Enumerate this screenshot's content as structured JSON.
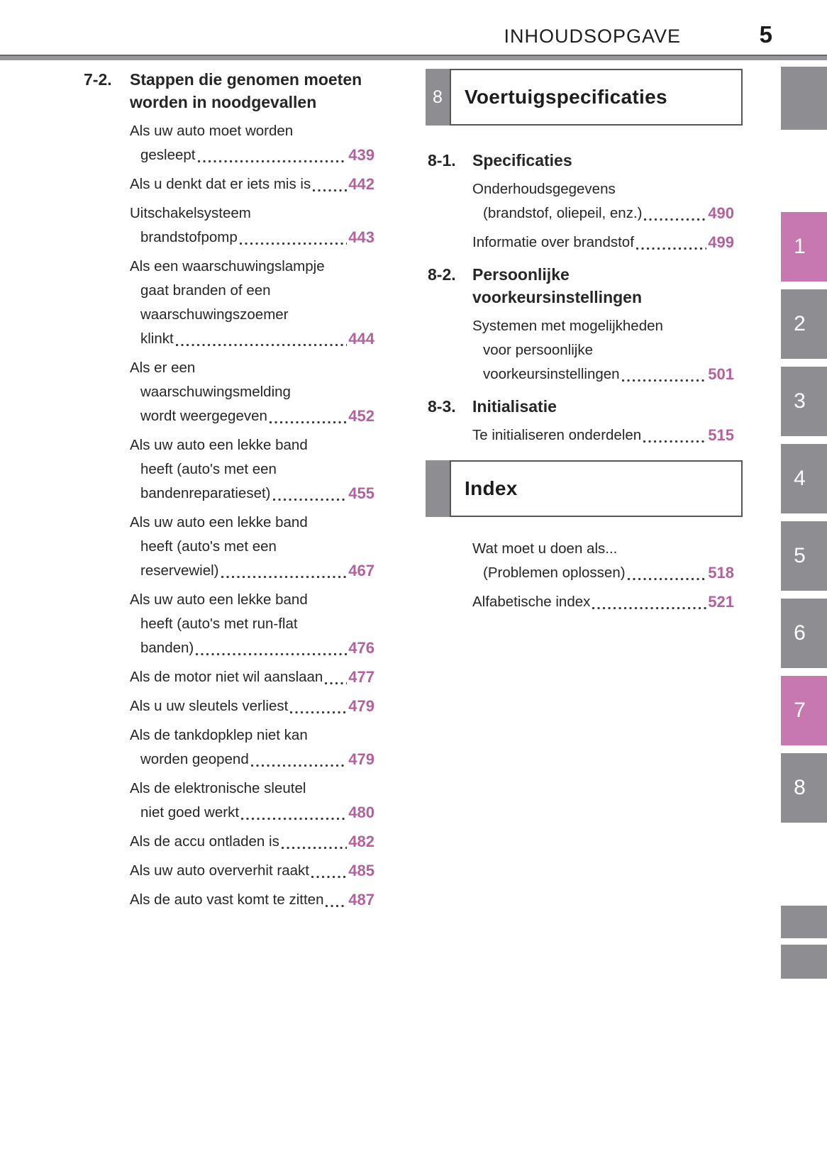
{
  "header": {
    "title": "INHOUDSOPGAVE",
    "page_number": "5"
  },
  "colors": {
    "page_number_pink": "#b3609e",
    "tab_pink": "#c778b1",
    "tab_gray": "#8e8e92",
    "text": "#262626",
    "box_border": "#55555a",
    "rule_gray": "#96969a"
  },
  "left_column": {
    "section_label": "7-2.",
    "section_title_lines": [
      "Stappen die genomen moeten",
      "worden in noodgevallen"
    ],
    "entries": [
      {
        "pre_lines": [
          "Als uw auto moet worden"
        ],
        "last_line": "gesleept",
        "page": "439"
      },
      {
        "pre_lines": [],
        "last_line": "Als u denkt dat er iets mis is",
        "page": "442"
      },
      {
        "pre_lines": [
          "Uitschakelsysteem"
        ],
        "last_line": "brandstofpomp",
        "page": "443"
      },
      {
        "pre_lines": [
          "Als een waarschuwingslampje",
          "gaat branden of een",
          "waarschuwingszoemer"
        ],
        "last_line": "klinkt",
        "page": "444"
      },
      {
        "pre_lines": [
          "Als er een",
          "waarschuwingsmelding"
        ],
        "last_line": "wordt weergegeven",
        "page": "452"
      },
      {
        "pre_lines": [
          "Als uw auto een lekke band",
          "heeft (auto's met een"
        ],
        "last_line": "bandenreparatieset)",
        "page": "455"
      },
      {
        "pre_lines": [
          "Als uw auto een lekke band",
          "heeft (auto's met een"
        ],
        "last_line": "reservewiel)",
        "page": "467"
      },
      {
        "pre_lines": [
          "Als uw auto een lekke band",
          "heeft (auto's met run-flat"
        ],
        "last_line": "banden)",
        "page": "476"
      },
      {
        "pre_lines": [],
        "last_line": "Als de motor niet wil aanslaan",
        "page": "477"
      },
      {
        "pre_lines": [],
        "last_line": "Als u uw sleutels verliest",
        "page": "479"
      },
      {
        "pre_lines": [
          "Als de tankdopklep niet kan"
        ],
        "last_line": "worden geopend",
        "page": "479"
      },
      {
        "pre_lines": [
          "Als de elektronische sleutel"
        ],
        "last_line": "niet goed werkt",
        "page": "480"
      },
      {
        "pre_lines": [],
        "last_line": "Als de accu ontladen is",
        "page": "482"
      },
      {
        "pre_lines": [],
        "last_line": "Als uw auto oververhit raakt",
        "page": "485"
      },
      {
        "pre_lines": [],
        "last_line": "Als de auto vast komt te zitten",
        "page": "487"
      }
    ]
  },
  "right_column": {
    "chapter_box": {
      "number": "8",
      "title": "Voertuigspecificaties"
    },
    "sections": [
      {
        "label": "8-1.",
        "title_lines": [
          "Specificaties"
        ],
        "entries": [
          {
            "pre_lines": [
              "Onderhoudsgegevens"
            ],
            "last_line": "(brandstof, oliepeil, enz.)",
            "page": "490"
          },
          {
            "pre_lines": [],
            "last_line": "Informatie over brandstof",
            "page": "499"
          }
        ]
      },
      {
        "label": "8-2.",
        "title_lines": [
          "Persoonlijke",
          "voorkeursinstellingen"
        ],
        "entries": [
          {
            "pre_lines": [
              "Systemen met mogelijkheden",
              "voor persoonlijke"
            ],
            "last_line": "voorkeursinstellingen",
            "page": "501"
          }
        ]
      },
      {
        "label": "8-3.",
        "title_lines": [
          "Initialisatie"
        ],
        "entries": [
          {
            "pre_lines": [],
            "last_line": "Te initialiseren onderdelen",
            "page": "515"
          }
        ]
      }
    ],
    "index_box": {
      "title": "Index"
    },
    "index_entries": [
      {
        "pre_lines": [
          "Wat moet u doen als..."
        ],
        "last_line": "(Problemen oplossen)",
        "page": "518"
      },
      {
        "pre_lines": [],
        "last_line": "Alfabetische index",
        "page": "521"
      }
    ]
  },
  "side_tabs": {
    "top_box": {
      "label": ""
    },
    "numbered": [
      {
        "label": "1",
        "highlighted": true
      },
      {
        "label": "2",
        "highlighted": false
      },
      {
        "label": "3",
        "highlighted": false
      },
      {
        "label": "4",
        "highlighted": false
      },
      {
        "label": "5",
        "highlighted": false
      },
      {
        "label": "6",
        "highlighted": false
      },
      {
        "label": "7",
        "highlighted": true
      },
      {
        "label": "8",
        "highlighted": false
      }
    ],
    "bottom_boxes": [
      {
        "label": ""
      },
      {
        "label": ""
      }
    ]
  }
}
